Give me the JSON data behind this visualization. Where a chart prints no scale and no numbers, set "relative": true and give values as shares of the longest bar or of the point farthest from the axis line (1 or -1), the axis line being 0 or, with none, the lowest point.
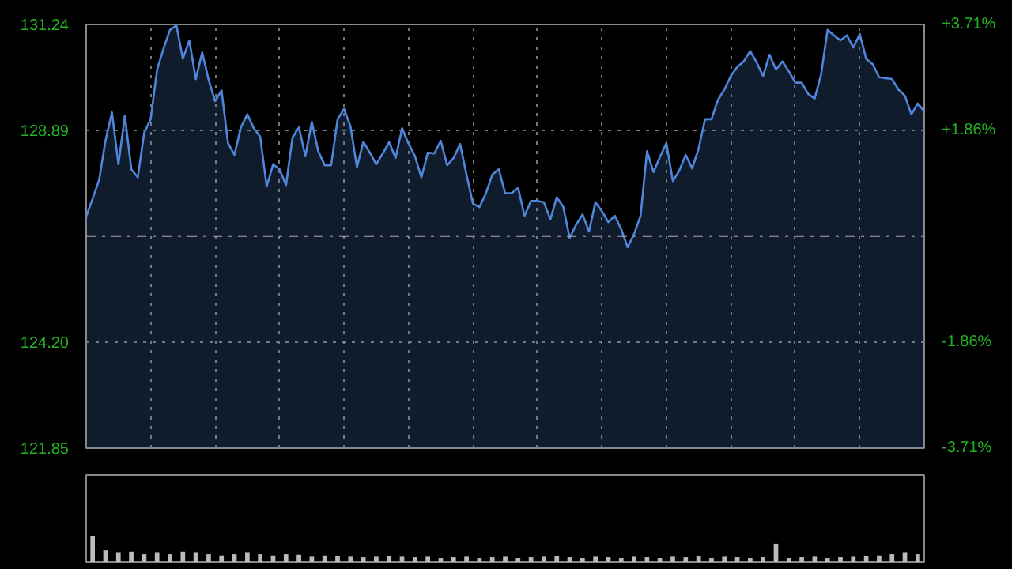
{
  "chart_data": [
    {
      "type": "area",
      "categories": [
        null,
        null,
        null,
        null,
        null,
        null,
        null,
        null,
        null,
        null,
        null,
        null,
        null,
        null,
        null,
        null,
        null,
        null,
        null,
        null,
        null,
        null,
        null,
        null,
        null,
        null,
        null,
        null,
        null,
        null,
        null,
        null,
        null,
        null,
        null,
        null,
        null,
        null,
        null,
        null,
        null,
        null,
        null,
        null,
        null,
        null,
        null,
        null,
        null,
        null,
        null,
        null,
        null,
        null,
        null,
        null,
        null,
        null,
        null,
        null,
        null,
        null,
        null,
        null,
        null,
        null,
        null,
        null,
        null,
        null,
        null,
        null,
        null,
        null,
        null,
        null,
        null,
        null,
        null,
        null,
        null,
        null,
        null,
        null,
        null,
        null,
        null,
        null,
        null,
        null,
        null,
        null,
        null,
        null,
        null,
        null,
        null,
        null,
        null,
        null,
        null,
        null,
        null,
        null,
        null,
        null,
        null,
        null,
        null,
        null,
        null,
        null,
        null,
        null,
        null,
        null,
        null,
        null,
        null,
        null,
        null,
        null,
        null,
        null,
        null,
        null,
        null,
        null,
        null,
        null,
        null
      ],
      "series": [
        {
          "color": "#4f86db",
          "values": [
            126.98,
            127.38,
            127.79,
            128.67,
            129.29,
            128.14,
            129.22,
            128.03,
            127.85,
            128.84,
            129.14,
            130.24,
            130.71,
            131.12,
            131.22,
            130.48,
            130.89,
            130.03,
            130.62,
            130.01,
            129.54,
            129.78,
            128.61,
            128.35,
            128.96,
            129.25,
            128.94,
            128.75,
            127.65,
            128.14,
            128.03,
            127.68,
            128.73,
            128.96,
            128.32,
            129.08,
            128.43,
            128.12,
            128.12,
            129.14,
            129.37,
            128.98,
            128.08,
            128.64,
            128.4,
            128.14,
            128.38,
            128.63,
            128.28,
            128.94,
            128.6,
            128.32,
            127.85,
            128.4,
            128.38,
            128.66,
            128.12,
            128.28,
            128.59,
            127.91,
            127.27,
            127.19,
            127.5,
            127.91,
            128.03,
            127.5,
            127.5,
            127.62,
            127.0,
            127.33,
            127.33,
            127.3,
            126.92,
            127.41,
            127.2,
            126.51,
            126.8,
            127.03,
            126.65,
            127.3,
            127.1,
            126.86,
            127.0,
            126.7,
            126.3,
            126.6,
            127.0,
            128.43,
            127.97,
            128.3,
            128.61,
            127.77,
            128.0,
            128.35,
            128.05,
            128.49,
            129.14,
            129.14,
            129.57,
            129.8,
            130.1,
            130.3,
            130.42,
            130.65,
            130.4,
            130.1,
            130.57,
            130.24,
            130.42,
            130.2,
            129.95,
            129.95,
            129.7,
            129.6,
            130.13,
            131.12,
            131.0,
            130.89,
            131.0,
            130.73,
            131.03,
            130.48,
            130.36,
            130.07,
            130.05,
            130.03,
            129.8,
            129.66,
            129.25,
            129.49,
            129.31
          ]
        }
      ],
      "ylim": [
        121.85,
        131.24
      ],
      "yticks": [
        {
          "value": 121.85,
          "label": "121.85"
        },
        {
          "value": 124.2,
          "label": "124.20"
        },
        {
          "value": 128.89,
          "label": "128.89"
        },
        {
          "value": 131.24,
          "label": "131.24"
        }
      ],
      "y2lim": [
        -3.71,
        3.71
      ],
      "y2ticks": [
        {
          "value": -3.71,
          "label": "-3.71%"
        },
        {
          "value": -1.86,
          "label": "-1.86%"
        },
        {
          "value": 1.86,
          "label": "+1.86%"
        },
        {
          "value": 3.71,
          "label": "+3.71%"
        }
      ],
      "ref_lines": [
        {
          "axis": "y",
          "value": 126.55,
          "label": null,
          "color": "#aaaaaa",
          "line_style": "dashdot"
        }
      ],
      "tick_labels": "y",
      "grid": true,
      "line_style": "solid"
    },
    {
      "type": "bar",
      "relative": true,
      "categories": [
        null,
        null,
        null,
        null,
        null,
        null,
        null,
        null,
        null,
        null,
        null,
        null,
        null,
        null,
        null,
        null,
        null,
        null,
        null,
        null,
        null,
        null,
        null,
        null,
        null,
        null,
        null,
        null,
        null,
        null,
        null,
        null,
        null,
        null,
        null,
        null,
        null,
        null,
        null,
        null,
        null,
        null,
        null,
        null,
        null,
        null,
        null,
        null,
        null,
        null,
        null,
        null,
        null,
        null,
        null,
        null,
        null,
        null,
        null,
        null,
        null,
        null,
        null,
        null,
        null
      ],
      "values": [
        1,
        0.45,
        0.35,
        0.4,
        0.3,
        0.35,
        0.3,
        0.4,
        0.35,
        0.3,
        0.25,
        0.3,
        0.35,
        0.3,
        0.25,
        0.3,
        0.28,
        0.2,
        0.25,
        0.22,
        0.2,
        0.18,
        0.2,
        0.22,
        0.2,
        0.18,
        0.2,
        0.15,
        0.18,
        0.2,
        0.15,
        0.18,
        0.2,
        0.15,
        0.18,
        0.2,
        0.22,
        0.18,
        0.15,
        0.2,
        0.18,
        0.15,
        0.2,
        0.18,
        0.15,
        0.2,
        0.18,
        0.22,
        0.15,
        0.2,
        0.18,
        0.15,
        0.18,
        0.7,
        0.15,
        0.18,
        0.2,
        0.15,
        0.18,
        0.2,
        0.22,
        0.25,
        0.3,
        0.35,
        0.3
      ],
      "color": "#bbbbbb"
    }
  ]
}
